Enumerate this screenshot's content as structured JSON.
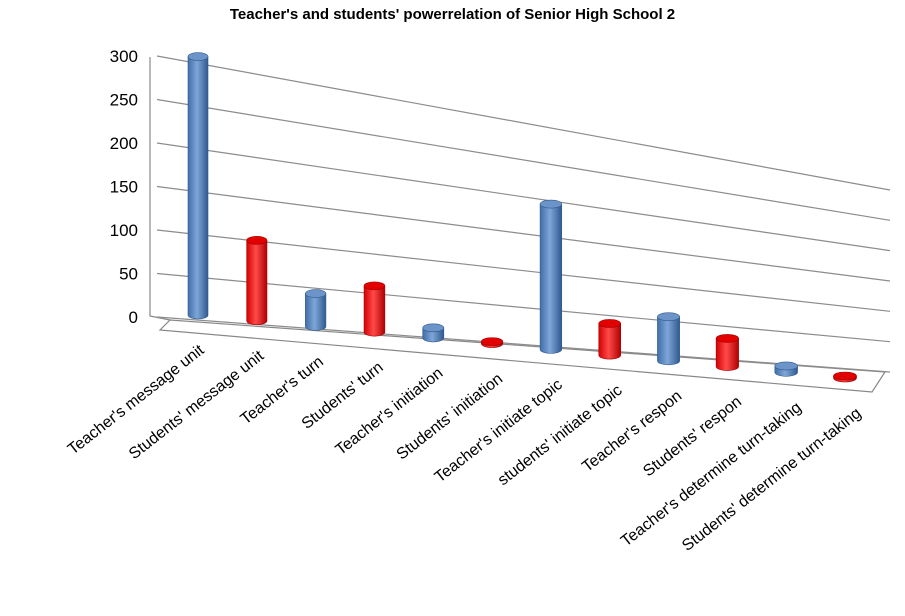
{
  "chart_data": {
    "type": "bar",
    "title": "Teacher's and students' powerrelation of Senior High School  2",
    "categories": [
      "Teacher's message unit",
      "Students' message unit",
      "Teacher's turn",
      "Students' turn",
      "Teacher's initiation",
      "Students' initiation",
      "Teacher's initiate topic",
      "students' initiate topic",
      "Teacher's respon",
      "Students' respon",
      "Teacher's determine turn-taking",
      "Students' determine turn-taking"
    ],
    "values": [
      297,
      95,
      40,
      58,
      13,
      2,
      200,
      45,
      65,
      43,
      10,
      2
    ],
    "colors": [
      "#4F81BD",
      "#FF0000",
      "#4F81BD",
      "#FF0000",
      "#4F81BD",
      "#FF0000",
      "#4F81BD",
      "#FF0000",
      "#4F81BD",
      "#FF0000",
      "#4F81BD",
      "#FF0000"
    ],
    "ylim": [
      0,
      300
    ],
    "yticks": [
      0,
      50,
      100,
      150,
      200,
      250,
      300
    ],
    "xlabel": "",
    "ylabel": "",
    "grid": true,
    "style": "3d-cylinder"
  }
}
